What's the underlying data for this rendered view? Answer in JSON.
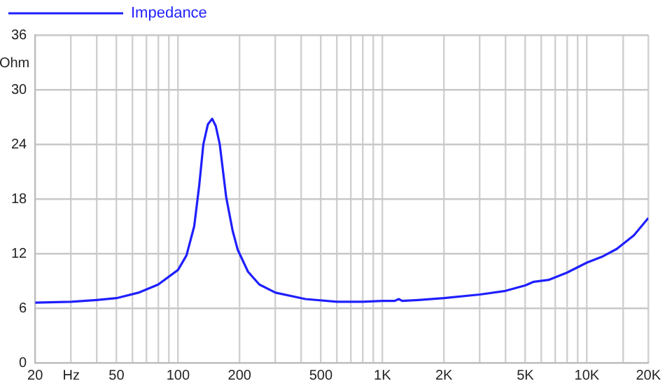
{
  "chart_data": {
    "type": "line",
    "ylabel": "Ohm",
    "log": "x",
    "grid": true,
    "legend": "top left",
    "marker": "none",
    "line_style": "solid",
    "xlim": [
      20,
      20000
    ],
    "ylim": [
      0,
      36
    ],
    "xticks": [
      20,
      {
        "value": 30,
        "label": "Hz"
      },
      {
        "value": 40,
        "label": null
      },
      50,
      {
        "value": 60,
        "label": null
      },
      {
        "value": 70,
        "label": null
      },
      {
        "value": 80,
        "label": null
      },
      {
        "value": 90,
        "label": null
      },
      100,
      200,
      {
        "value": 300,
        "label": null
      },
      {
        "value": 400,
        "label": null
      },
      500,
      {
        "value": 600,
        "label": null
      },
      {
        "value": 700,
        "label": null
      },
      {
        "value": 800,
        "label": null
      },
      {
        "value": 900,
        "label": null
      },
      {
        "value": 1000,
        "label": "1K"
      },
      {
        "value": 2000,
        "label": "2K"
      },
      {
        "value": 3000,
        "label": null
      },
      {
        "value": 4000,
        "label": null
      },
      {
        "value": 5000,
        "label": "5K"
      },
      {
        "value": 6000,
        "label": null
      },
      {
        "value": 7000,
        "label": null
      },
      {
        "value": 8000,
        "label": null
      },
      {
        "value": 9000,
        "label": null
      },
      {
        "value": 10000,
        "label": "10K"
      },
      {
        "value": 15000,
        "label": null
      },
      {
        "value": 20000,
        "label": "20K"
      }
    ],
    "yticks": [
      0,
      6,
      12,
      18,
      24,
      30,
      36
    ],
    "x": [
      20,
      30,
      40,
      50,
      64,
      80,
      100,
      110,
      120,
      127,
      133,
      140,
      147,
      153,
      160,
      172,
      185,
      196,
      220,
      250,
      300,
      420,
      600,
      800,
      1000,
      1150,
      1200,
      1250,
      1500,
      2000,
      3000,
      4000,
      5000,
      5500,
      6500,
      8000,
      10000,
      12000,
      14000,
      17000,
      20000
    ],
    "series": [
      {
        "name": "Impedance",
        "color": "#1f1fff",
        "values": [
          6.6,
          6.7,
          6.9,
          7.1,
          7.7,
          8.6,
          10.2,
          11.8,
          15,
          19.5,
          24,
          26.2,
          26.8,
          26,
          24,
          18.2,
          14.5,
          12.4,
          10,
          8.6,
          7.7,
          7.0,
          6.7,
          6.7,
          6.8,
          6.8,
          7.0,
          6.8,
          6.9,
          7.1,
          7.5,
          7.9,
          8.5,
          8.9,
          9.1,
          9.9,
          11.0,
          11.7,
          12.5,
          14,
          15.9
        ]
      }
    ]
  }
}
